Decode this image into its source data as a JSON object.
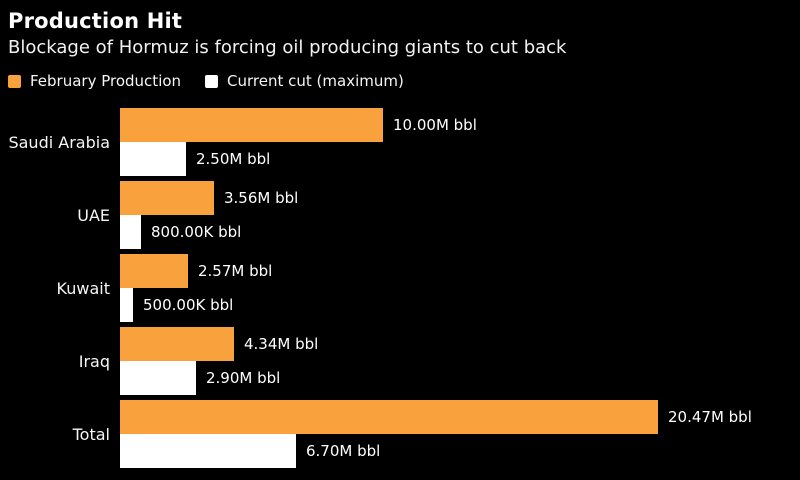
{
  "header": {
    "title": "Production Hit",
    "subtitle": "Blockage of Hormuz is forcing oil producing giants to cut back"
  },
  "legend": [
    {
      "label": "February Production",
      "color": "#F9A13C"
    },
    {
      "label": "Current cut (maximum)",
      "color": "#FFFFFF"
    }
  ],
  "colors": {
    "background": "#000000",
    "text": "#FFFFFF",
    "orange": "#F9A13C",
    "white": "#FFFFFF"
  },
  "chart_data": {
    "type": "bar",
    "orientation": "horizontal",
    "title": "Production Hit",
    "subtitle": "Blockage of Hormuz is forcing oil producing giants to cut back",
    "unit": "bbl",
    "xlabel": "",
    "ylabel": "",
    "xlim_millions": [
      0,
      20.47
    ],
    "grid": false,
    "legend_position": "top",
    "categories": [
      "Saudi Arabia",
      "UAE",
      "Kuwait",
      "Iraq",
      "Total"
    ],
    "series": [
      {
        "name": "February Production",
        "color": "#F9A13C",
        "values_millions": [
          10.0,
          3.56,
          2.57,
          4.34,
          20.47
        ],
        "labels": [
          "10.00M bbl",
          "3.56M bbl",
          "2.57M bbl",
          "4.34M bbl",
          "20.47M bbl"
        ]
      },
      {
        "name": "Current cut (maximum)",
        "color": "#FFFFFF",
        "values_millions": [
          2.5,
          0.8,
          0.5,
          2.9,
          6.7
        ],
        "labels": [
          "2.50M bbl",
          "800.00K bbl",
          "500.00K bbl",
          "2.90M bbl",
          "6.70M bbl"
        ]
      }
    ]
  }
}
